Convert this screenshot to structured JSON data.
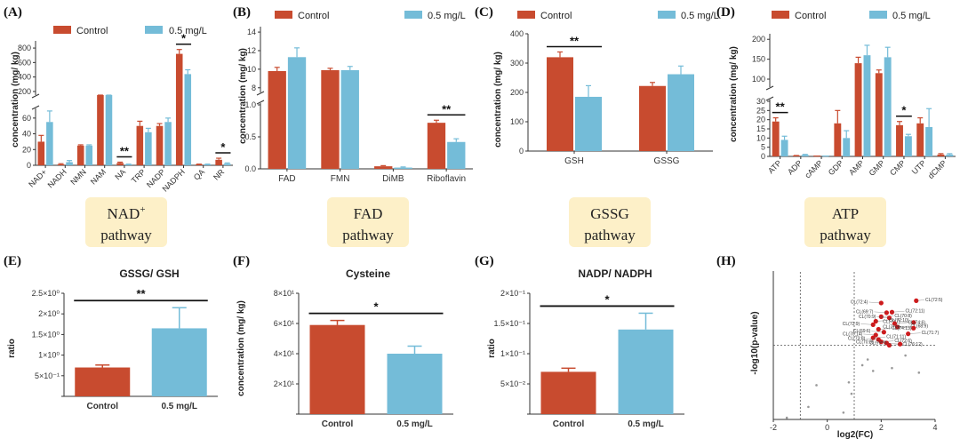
{
  "colors": {
    "control": "#c84b2f",
    "treated": "#74bcd8",
    "axis": "#333333",
    "pathway_box": "#fdf0c8"
  },
  "legend": {
    "control": "Control",
    "treated": "0.5 mg/L"
  },
  "panels": {
    "A": {
      "letter": "(A)",
      "ylabel": "concentration (mg/ kg)",
      "pathway": [
        "NAD",
        "+",
        "pathway"
      ]
    },
    "B": {
      "letter": "(B)",
      "ylabel": "concentration (mg/ kg)",
      "pathway": [
        "FAD",
        "pathway"
      ]
    },
    "C": {
      "letter": "(C)",
      "ylabel": "concentration (mg/ kg)",
      "pathway": [
        "GSSG",
        "pathway"
      ]
    },
    "D": {
      "letter": "(D)",
      "ylabel": "concentration (mg/ kg)",
      "pathway": [
        "ATP",
        "pathway"
      ]
    },
    "E": {
      "letter": "(E)",
      "title": "GSSG/ GSH",
      "ylabel": "ratio"
    },
    "F": {
      "letter": "(F)",
      "title": "Cysteine",
      "ylabel": "concentration (mg/ kg)"
    },
    "G": {
      "letter": "(G)",
      "title": "NADP/ NADPH",
      "ylabel": "ratio"
    },
    "H": {
      "letter": "(H)",
      "ylabel": "-log10(p-value)",
      "xlabel": "log2(FC)"
    }
  },
  "chart_data": [
    {
      "id": "A",
      "type": "bar",
      "title": "",
      "categories": [
        "NAD+",
        "NADH",
        "NMN",
        "NAM",
        "NA",
        "TRP",
        "NADP",
        "NADPH",
        "QA",
        "NR"
      ],
      "series": [
        {
          "name": "Control",
          "values": [
            30,
            1,
            25,
            100,
            3,
            50,
            50,
            720,
            1,
            7
          ],
          "errors": [
            8,
            1,
            1,
            15,
            1,
            6,
            3,
            60,
            0.5,
            2
          ]
        },
        {
          "name": "0.5 mg/L",
          "values": [
            55,
            4,
            25,
            80,
            1,
            42,
            55,
            440,
            1,
            2
          ],
          "errors": [
            14,
            2,
            1,
            20,
            0.5,
            5,
            5,
            60,
            0.5,
            1
          ]
        }
      ],
      "xlabel": "",
      "ylabel": "concentration (mg/ kg)",
      "yticks_lower": [
        "0",
        "20",
        "40",
        "60"
      ],
      "yticks_upper": [
        "200",
        "400",
        "600",
        "800"
      ],
      "significance": [
        {
          "category": "NA",
          "label": "**"
        },
        {
          "category": "NADPH",
          "label": "*"
        },
        {
          "category": "NR",
          "label": "*"
        }
      ]
    },
    {
      "id": "B",
      "type": "bar",
      "title": "",
      "categories": [
        "FAD",
        "FMN",
        "DiMB",
        "Riboflavin"
      ],
      "series": [
        {
          "name": "Control",
          "values": [
            9.8,
            9.9,
            0.04,
            0.72
          ],
          "errors": [
            0.4,
            0.2,
            0.01,
            0.04
          ]
        },
        {
          "name": "0.5 mg/L",
          "values": [
            11.3,
            9.9,
            0.02,
            0.42
          ],
          "errors": [
            1.0,
            0.4,
            0.01,
            0.05
          ]
        }
      ],
      "xlabel": "",
      "ylabel": "concentration (mg/ kg)",
      "yticks_lower": [
        "0.0",
        "0.5",
        "1.0"
      ],
      "yticks_upper": [
        "8",
        "10",
        "12",
        "14"
      ],
      "significance": [
        {
          "category": "Riboflavin",
          "label": "**"
        }
      ]
    },
    {
      "id": "C",
      "type": "bar",
      "title": "",
      "categories": [
        "GSH",
        "GSSG"
      ],
      "series": [
        {
          "name": "Control",
          "values": [
            320,
            222
          ],
          "errors": [
            18,
            12
          ]
        },
        {
          "name": "0.5 mg/L",
          "values": [
            185,
            262
          ],
          "errors": [
            38,
            28
          ]
        }
      ],
      "xlabel": "",
      "ylabel": "concentration (mg/ kg)",
      "ylim": [
        0,
        400
      ],
      "yticks": [
        "0",
        "100",
        "200",
        "300",
        "400"
      ],
      "significance": [
        {
          "category": "GSH",
          "label": "**"
        }
      ]
    },
    {
      "id": "D",
      "type": "bar",
      "title": "",
      "categories": [
        "ATP",
        "ADP",
        "cAMP",
        "GDP",
        "AMP",
        "GMP",
        "CMP",
        "UTP",
        "dCMP"
      ],
      "series": [
        {
          "name": "Control",
          "values": [
            19,
            0.3,
            0.1,
            18,
            140,
            115,
            17,
            18,
            1
          ],
          "errors": [
            2,
            0.2,
            0.1,
            7,
            15,
            8,
            2,
            3,
            0.5
          ]
        },
        {
          "name": "0.5 mg/L",
          "values": [
            9,
            0.8,
            0.1,
            10,
            160,
            155,
            11,
            16,
            1
          ],
          "errors": [
            2,
            0.3,
            0.1,
            4,
            25,
            25,
            1,
            10,
            0.5
          ]
        }
      ],
      "xlabel": "",
      "ylabel": "concentration (mg/ kg)",
      "yticks_lower": [
        "0",
        "5",
        "10",
        "15",
        "20",
        "25",
        "30"
      ],
      "yticks_upper": [
        "100",
        "150",
        "200"
      ],
      "significance": [
        {
          "category": "ATP",
          "label": "**"
        },
        {
          "category": "CMP",
          "label": "*"
        }
      ]
    },
    {
      "id": "E",
      "type": "bar",
      "title": "GSSG/ GSH",
      "categories": [
        "Control",
        "0.5 mg/L"
      ],
      "values": [
        0.7,
        1.65
      ],
      "errors": [
        0.06,
        0.5
      ],
      "ylim": [
        0,
        2.5
      ],
      "yticks": [
        "0",
        "5×10⁻¹",
        "1×10⁰",
        "1.5×10⁰",
        "2×10⁰",
        "2.5×10⁰"
      ],
      "xlabel": "",
      "ylabel": "ratio",
      "significance": "**"
    },
    {
      "id": "F",
      "type": "bar",
      "title": "Cysteine",
      "categories": [
        "Control",
        "0.5 mg/L"
      ],
      "values": [
        59,
        40
      ],
      "errors": [
        3,
        5
      ],
      "ylim": [
        0,
        80
      ],
      "yticks": [
        "0",
        "2×10¹",
        "4×10¹",
        "6×10¹",
        "8×10¹"
      ],
      "xlabel": "",
      "ylabel": "concentration (mg/ kg)",
      "significance": "*"
    },
    {
      "id": "G",
      "type": "bar",
      "title": "NADP/ NADPH",
      "categories": [
        "Control",
        "0.5 mg/L"
      ],
      "values": [
        0.07,
        0.14
      ],
      "errors": [
        0.006,
        0.027
      ],
      "ylim": [
        0,
        0.2
      ],
      "yticks": [
        "0",
        "5×10⁻²",
        "1×10⁻¹",
        "1.5×10⁻¹",
        "2×10⁻¹"
      ],
      "xlabel": "",
      "ylabel": "ratio",
      "significance": "*"
    },
    {
      "id": "H",
      "type": "scatter",
      "title": "",
      "xlabel": "log2(FC)",
      "ylabel": "-log10(p-value)",
      "xlim": [
        -2,
        4
      ],
      "ylim": [
        0,
        2.6
      ],
      "xticks": [
        "-2",
        "0",
        "2",
        "4"
      ],
      "thresholds": {
        "x": [
          -1,
          1
        ],
        "y": 1.3
      },
      "significant_points": [
        {
          "x": 3.3,
          "y": 2.08,
          "label": "CL(72:5)"
        },
        {
          "x": 2.0,
          "y": 2.04,
          "label": "CL(72:4)"
        },
        {
          "x": 2.4,
          "y": 1.88,
          "label": "CL(72:11)"
        },
        {
          "x": 2.2,
          "y": 1.87,
          "label": "CL(69:7)"
        },
        {
          "x": 2.0,
          "y": 1.8,
          "label": "CL(70:8)"
        },
        {
          "x": 2.3,
          "y": 1.78,
          "label": "CL(70:9)"
        },
        {
          "x": 1.8,
          "y": 1.72,
          "label": "CL(72:10)"
        },
        {
          "x": 3.2,
          "y": 1.7,
          "label": "CL(70:7)"
        },
        {
          "x": 2.5,
          "y": 1.68,
          "label": "CL(74:6)"
        },
        {
          "x": 1.7,
          "y": 1.66,
          "label": "CL(72:9)"
        },
        {
          "x": 2.6,
          "y": 1.62,
          "label": "CL(68:9)"
        },
        {
          "x": 3.2,
          "y": 1.6,
          "label": "CL(71:8)"
        },
        {
          "x": 1.9,
          "y": 1.58,
          "label": "CL(74:13)"
        },
        {
          "x": 2.1,
          "y": 1.53,
          "label": "CL(69:6)"
        },
        {
          "x": 3.0,
          "y": 1.5,
          "label": "CL(71:7)"
        },
        {
          "x": 1.8,
          "y": 1.48,
          "label": "CL(70:14)"
        },
        {
          "x": 1.7,
          "y": 1.43,
          "label": "CL(71:11)"
        },
        {
          "x": 1.9,
          "y": 1.4,
          "label": "CL(73:8)"
        },
        {
          "x": 2.0,
          "y": 1.36,
          "label": "CL(72:6)"
        },
        {
          "x": 2.2,
          "y": 1.34,
          "label": "CL(70:9)"
        },
        {
          "x": 2.3,
          "y": 1.3,
          "label": "CL(76:12)"
        },
        {
          "x": 2.7,
          "y": 1.32,
          "label": "CL(72:7)"
        }
      ],
      "other_points": [
        {
          "x": -1.5,
          "y": 0.03
        },
        {
          "x": -0.7,
          "y": 0.22
        },
        {
          "x": -0.4,
          "y": 0.6
        },
        {
          "x": 0.8,
          "y": 0.65
        },
        {
          "x": 0.9,
          "y": 0.45
        },
        {
          "x": 0.6,
          "y": 0.12
        },
        {
          "x": 1.3,
          "y": 0.95
        },
        {
          "x": 1.7,
          "y": 0.85
        },
        {
          "x": 2.4,
          "y": 0.9
        },
        {
          "x": 3.4,
          "y": 0.82
        },
        {
          "x": 1.5,
          "y": 1.05
        },
        {
          "x": 2.9,
          "y": 1.12
        }
      ]
    }
  ]
}
